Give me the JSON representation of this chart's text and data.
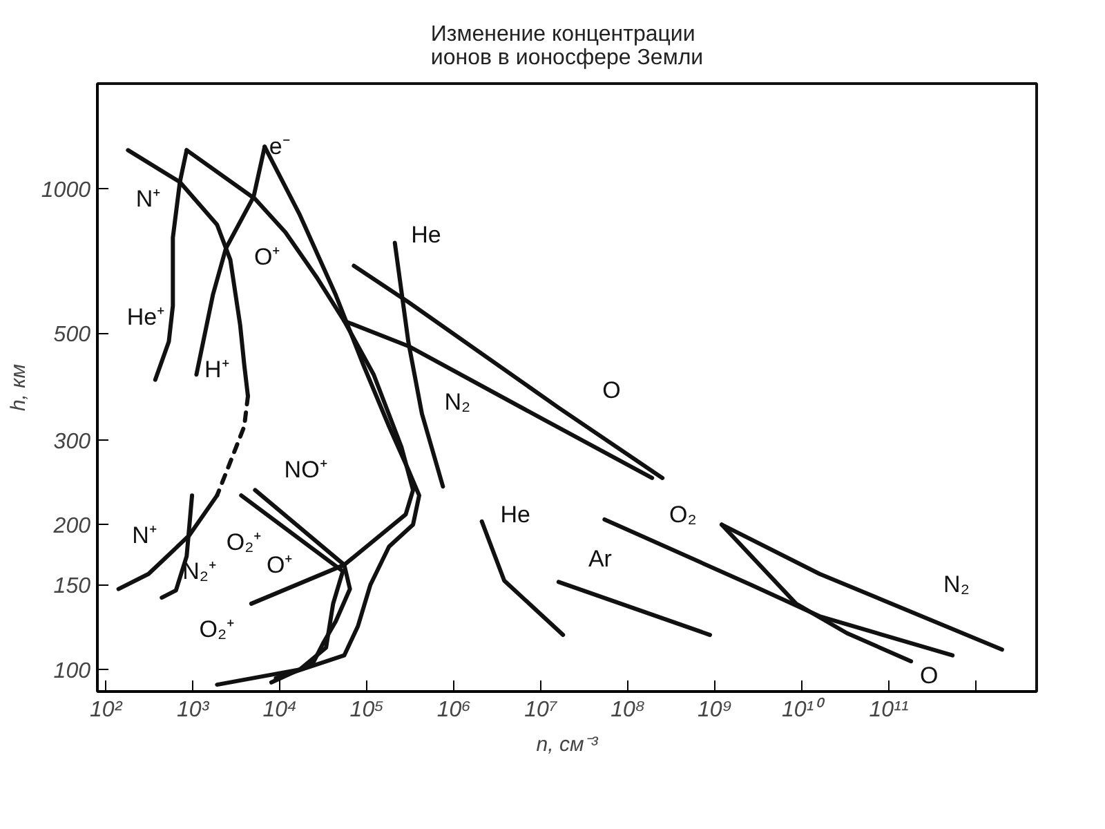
{
  "chart_data": {
    "type": "line",
    "title": "Изменение концентрации ионов в ионосфере Земли",
    "xlabel": "n, см⁻³",
    "ylabel": "h, км",
    "log": "xy",
    "grid": false,
    "marker": "none",
    "xlim": [
      80,
      5000000000000
    ],
    "ylim": [
      90,
      1650
    ],
    "xticks": [
      {
        "value": 100,
        "label": "10²"
      },
      {
        "value": 1000,
        "label": "10³"
      },
      {
        "value": 10000,
        "label": "10⁴"
      },
      {
        "value": 100000,
        "label": "10⁵"
      },
      {
        "value": 1000000,
        "label": "10⁶"
      },
      {
        "value": 10000000,
        "label": "10⁷"
      },
      {
        "value": 100000000,
        "label": "10⁸"
      },
      {
        "value": 1000000000,
        "label": "10⁹"
      },
      {
        "value": 10000000000,
        "label": "10¹⁰"
      },
      {
        "value": 100000000000,
        "label": "10¹¹"
      },
      {
        "value": 1000000000000,
        "label": null
      }
    ],
    "yticks": [
      100,
      150,
      200,
      300,
      500,
      1000
    ],
    "series": [
      {
        "color": "#111111",
        "line_style": "solid",
        "x": [
          180,
          710,
          1900,
          2700,
          3500,
          3900,
          4300
        ],
        "values": [
          1200,
          1030,
          840,
          710,
          520,
          430,
          370
        ]
      },
      {
        "color": "#111111",
        "line_style": "dashed",
        "x": [
          4300,
          3900,
          2700,
          1900
        ],
        "values": [
          370,
          320,
          270,
          230
        ]
      },
      {
        "color": "#111111",
        "line_style": "solid",
        "x": [
          1900,
          910,
          310,
          140
        ],
        "values": [
          230,
          190,
          158,
          147
        ]
      },
      {
        "color": "#111111",
        "line_style": "solid",
        "x": [
          850,
          710,
          590,
          590,
          530,
          370
        ],
        "values": [
          1200,
          1030,
          790,
          570,
          480,
          400
        ]
      },
      {
        "color": "#111111",
        "line_style": "solid",
        "x": [
          6700,
          5000,
          2400,
          1700,
          1100
        ],
        "values": [
          1220,
          960,
          750,
          600,
          410
        ]
      },
      {
        "color": "#111111",
        "line_style": "solid",
        "x": [
          6700,
          17000,
          44000,
          91000,
          180000,
          300000,
          400000,
          340000,
          180000,
          110000,
          79000,
          55000,
          9000
        ],
        "values": [
          1220,
          880,
          600,
          430,
          320,
          260,
          230,
          200,
          180,
          150,
          123,
          107,
          96
        ]
      },
      {
        "color": "#111111",
        "line_style": "solid",
        "x": [
          850,
          5200,
          11600,
          27000,
          55000,
          120000,
          250000,
          340000,
          280000,
          55000,
          4700
        ],
        "values": [
          1200,
          950,
          810,
          650,
          530,
          410,
          290,
          236,
          210,
          165,
          137
        ]
      },
      {
        "color": "#111111",
        "line_style": "solid",
        "x": [
          5200,
          55000,
          64000,
          44000,
          32000,
          24000,
          8000
        ],
        "values": [
          236,
          165,
          147,
          126,
          114,
          103,
          94
        ]
      },
      {
        "color": "#111111",
        "line_style": "solid",
        "x": [
          3600,
          53000,
          41000,
          34000,
          17000,
          1900
        ],
        "values": [
          230,
          160,
          137,
          111,
          100,
          93
        ]
      },
      {
        "color": "#111111",
        "line_style": "solid",
        "x": [
          980,
          850,
          640,
          440
        ],
        "values": [
          230,
          172,
          146,
          141
        ]
      },
      {
        "color": "#111111",
        "line_style": "solid",
        "x": [
          210000,
          300000,
          430000,
          750000
        ],
        "values": [
          770,
          480,
          340,
          240
        ]
      },
      {
        "color": "#111111",
        "line_style": "solid",
        "x": [
          71000,
          300000,
          16000000,
          250000000
        ],
        "values": [
          690,
          580,
          350,
          250
        ]
      },
      {
        "color": "#111111",
        "line_style": "solid",
        "x": [
          55000,
          300000,
          11000000,
          190000000
        ],
        "values": [
          530,
          470,
          330,
          250
        ]
      },
      {
        "color": "#111111",
        "line_style": "solid",
        "x": [
          2100000,
          3800000,
          18000000
        ],
        "values": [
          203,
          153,
          118
        ]
      },
      {
        "color": "#111111",
        "line_style": "solid",
        "x": [
          16000000,
          880000000
        ],
        "values": [
          152,
          118
        ]
      },
      {
        "color": "#111111",
        "line_style": "solid",
        "x": [
          54000000,
          2600000000,
          16000000000,
          540000000000
        ],
        "values": [
          205,
          150,
          129,
          107
        ]
      },
      {
        "color": "#111111",
        "line_style": "solid",
        "x": [
          1200000000,
          16000000000,
          2000000000000
        ],
        "values": [
          200,
          158,
          110
        ]
      },
      {
        "color": "#111111",
        "line_style": "solid",
        "x": [
          1200000000,
          8600000000,
          33000000000,
          180000000000
        ],
        "values": [
          200,
          137,
          119,
          104
        ]
      }
    ],
    "annotations": [
      "N⁺",
      "He⁺",
      "H⁺",
      "O⁺",
      "e⁻",
      "He",
      "N₂",
      "O",
      "N⁺",
      "N₂⁺",
      "O₂⁺",
      "O⁺",
      "NO⁺",
      "O₂⁺",
      "He",
      "Ar",
      "O₂",
      "N₂",
      "O"
    ]
  }
}
